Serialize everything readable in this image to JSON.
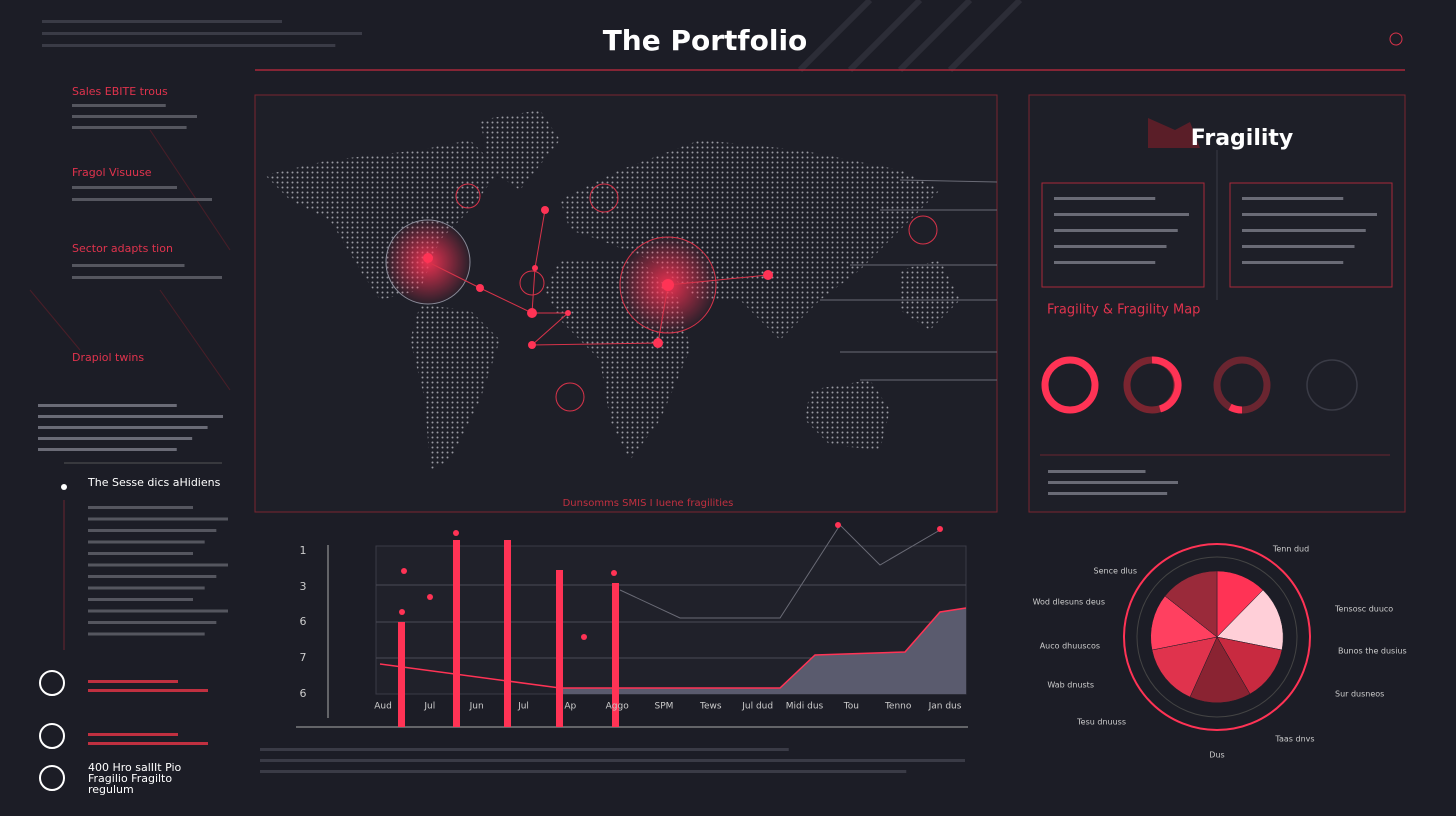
{
  "header": {
    "title": "The Portfolio"
  },
  "sidebar": {
    "sections": [
      "Sales EBITE trous",
      "Fragol Visuuse",
      "Sector adapts tion",
      "Drapiol twins"
    ],
    "highlight": "The Sesse dics aHidiens",
    "footer_lines": [
      "400 Hro salIIt Pio",
      "Fragilio Fragilto",
      "regulum"
    ]
  },
  "map": {
    "caption": "Dunsomms SMIS I Iuene fragilities"
  },
  "fragility_panel": {
    "title": "Fragility",
    "map_title": "Fragility & Fragility Map"
  },
  "trend_chart": {
    "y_labels": [
      "1",
      "3",
      "6",
      "7",
      "6"
    ],
    "x_labels": [
      "Aud",
      "Jul",
      "Jun",
      "Jul",
      "Ap",
      "Aggo",
      "SPM",
      "Tews",
      "Jul dud",
      "Midi dus",
      "Tou",
      "Tenno",
      "Jan dus"
    ]
  },
  "pie_labels": [
    "Tenn dud",
    "Sence dlus",
    "Wod dlesuns deus",
    "Auco dhuuscos",
    "Wab dnusts",
    "Tesu dnuuss",
    "Taas dnvs",
    "Tensosc duuco",
    "Bunos the dusius",
    "Sur dusneos",
    "Dus"
  ]
}
